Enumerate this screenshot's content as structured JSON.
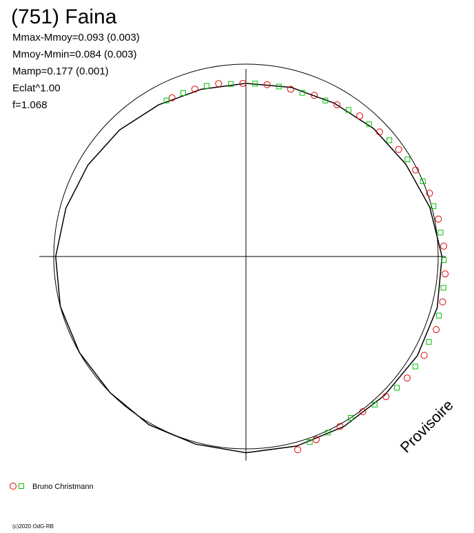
{
  "chart_data": {
    "type": "polar",
    "title": "(751) Faina",
    "annotations": [
      "Mmax-Mmoy=0.093 (0.003)",
      "Mmoy-Mmin=0.084 (0.003)",
      "Mamp=0.177 (0.001)",
      "Eclat^1.00",
      "f=1.068"
    ],
    "watermark": "Provisoire",
    "footer": "(c)2020 OdG-RB",
    "reference_circle": 1,
    "model": {
      "color": "#000000",
      "theta": [
        0,
        15,
        30,
        45,
        60,
        75,
        90,
        105,
        120,
        135,
        150,
        165,
        180,
        195,
        210,
        225,
        240,
        255,
        270,
        285,
        300,
        315,
        330,
        345,
        360
      ],
      "r": [
        1.02,
        0.99,
        0.96,
        0.94,
        0.92,
        0.91,
        0.9,
        0.9,
        0.91,
        0.93,
        0.95,
        0.97,
        0.99,
        1.0,
        1.0,
        1.0,
        1.01,
        1.01,
        1.02,
        1.02,
        1.02,
        1.02,
        1.03,
        1.03,
        1.02
      ]
    },
    "series": [
      {
        "name": "Bruno Christmann",
        "color": "#e00000",
        "marker": "circle",
        "theta": [
          115,
          107,
          99,
          91,
          83,
          75,
          67,
          59,
          51,
          43,
          35,
          27,
          19,
          11,
          3,
          -5,
          -13,
          -21,
          -29,
          -37,
          -45,
          -53,
          -61,
          -69,
          -75
        ],
        "r": [
          0.91,
          0.91,
          0.91,
          0.9,
          0.9,
          0.9,
          0.91,
          0.92,
          0.94,
          0.95,
          0.97,
          0.99,
          1.01,
          1.02,
          1.03,
          1.04,
          1.05,
          1.06,
          1.06,
          1.05,
          1.03,
          1.01,
          1.01,
          1.02,
          1.04
        ]
      },
      {
        "color": "#00c000",
        "marker": "square",
        "theta": [
          117,
          111,
          103,
          95,
          87,
          79,
          71,
          63,
          55,
          47,
          39,
          31,
          23,
          15,
          7,
          -1,
          -9,
          -17,
          -25,
          -33,
          -41,
          -49,
          -57,
          -65,
          -71
        ],
        "r": [
          0.91,
          0.91,
          0.91,
          0.9,
          0.9,
          0.9,
          0.9,
          0.91,
          0.93,
          0.94,
          0.96,
          0.98,
          1.0,
          1.01,
          1.02,
          1.03,
          1.04,
          1.05,
          1.05,
          1.05,
          1.04,
          1.02,
          1.0,
          1.01,
          1.02
        ]
      }
    ]
  }
}
